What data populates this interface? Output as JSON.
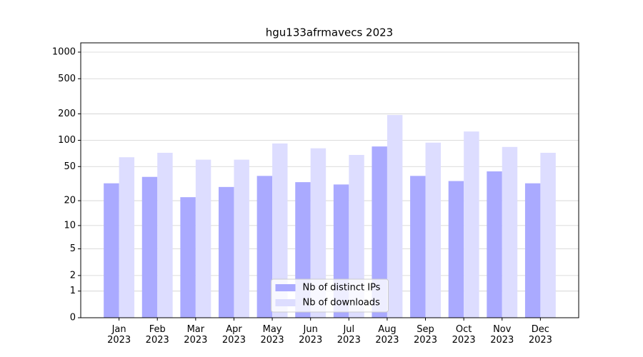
{
  "chart_data": {
    "type": "bar",
    "title": "hgu133afrmavecs 2023",
    "categories": [
      "Jan\n2023",
      "Feb\n2023",
      "Mar\n2023",
      "Apr\n2023",
      "May\n2023",
      "Jun\n2023",
      "Jul\n2023",
      "Aug\n2023",
      "Sep\n2023",
      "Oct\n2023",
      "Nov\n2023",
      "Dec\n2023"
    ],
    "series": [
      {
        "name": "Nb of distinct IPs",
        "color": "#aaaaff",
        "values": [
          32,
          38,
          22,
          29,
          39,
          33,
          31,
          85,
          39,
          34,
          44,
          32
        ]
      },
      {
        "name": "Nb of downloads",
        "color": "#ddddff",
        "values": [
          64,
          72,
          60,
          60,
          92,
          81,
          68,
          194,
          94,
          126,
          84,
          72
        ]
      }
    ],
    "yscale": "log1p",
    "ylim": [
      0,
      1273
    ],
    "yticks": [
      0,
      1,
      2,
      5,
      10,
      20,
      50,
      100,
      200,
      500,
      1000
    ],
    "grid": true,
    "legend": "lower center"
  }
}
